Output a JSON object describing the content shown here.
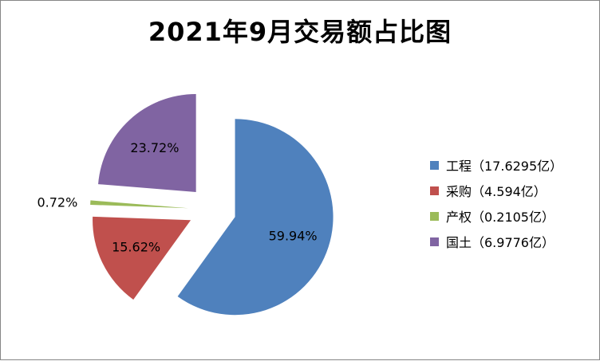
{
  "chart_data": {
    "type": "pie",
    "title": "2021年9月交易额占比图",
    "categories": [
      "工程",
      "采购",
      "产权",
      "国土"
    ],
    "values": [
      17.6295,
      4.594,
      0.2105,
      6.9776
    ],
    "unit": "亿",
    "percent_labels": [
      "59.94%",
      "15.62%",
      "0.72%",
      "23.72%"
    ],
    "legend_labels": [
      "工程（17.6295亿）",
      "采购（4.594亿）",
      "产权（0.2105亿）",
      "国土（6.9776亿）"
    ],
    "colors": [
      "#4f81bd",
      "#c0504d",
      "#9bbb59",
      "#8064a2"
    ],
    "exploded": true,
    "legend_position": "right"
  }
}
